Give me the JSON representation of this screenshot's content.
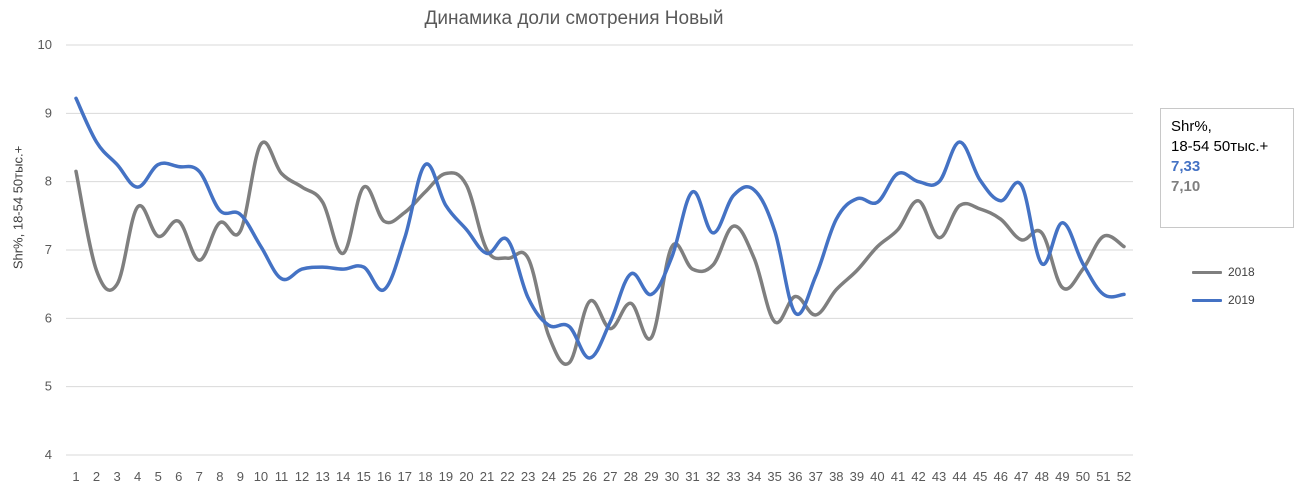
{
  "chart_data": {
    "type": "line",
    "title": "Динамика доли смотрения Новый",
    "ylabel": "Shr%, 18-54 50тыс.+",
    "xlabel": "",
    "ylim": [
      4,
      10
    ],
    "yticks": [
      4,
      5,
      6,
      7,
      8,
      9,
      10
    ],
    "grid": true,
    "legend": "right",
    "x": [
      1,
      2,
      3,
      4,
      5,
      6,
      7,
      8,
      9,
      10,
      11,
      12,
      13,
      14,
      15,
      16,
      17,
      18,
      19,
      20,
      21,
      22,
      23,
      24,
      25,
      26,
      27,
      28,
      29,
      30,
      31,
      32,
      33,
      34,
      35,
      36,
      37,
      38,
      39,
      40,
      41,
      42,
      43,
      44,
      45,
      46,
      47,
      48,
      49,
      50,
      51,
      52
    ],
    "series": [
      {
        "name": "2018",
        "color": "#7f7f7f",
        "values": [
          8.15,
          6.7,
          6.5,
          7.63,
          7.2,
          7.42,
          6.85,
          7.4,
          7.28,
          8.55,
          8.12,
          7.92,
          7.7,
          6.95,
          7.92,
          7.42,
          7.55,
          7.85,
          8.12,
          7.95,
          7.0,
          6.88,
          6.88,
          5.75,
          5.35,
          6.25,
          5.85,
          6.22,
          5.72,
          7.05,
          6.72,
          6.78,
          7.35,
          6.88,
          5.95,
          6.32,
          6.05,
          6.42,
          6.7,
          7.05,
          7.3,
          7.72,
          7.18,
          7.65,
          7.6,
          7.45,
          7.15,
          7.25,
          6.45,
          6.72,
          7.2,
          7.05
        ]
      },
      {
        "name": "2019",
        "color": "#4472C4",
        "values": [
          9.22,
          8.58,
          8.25,
          7.92,
          8.25,
          8.22,
          8.15,
          7.58,
          7.52,
          7.05,
          6.58,
          6.72,
          6.75,
          6.72,
          6.75,
          6.42,
          7.18,
          8.25,
          7.65,
          7.3,
          6.95,
          7.15,
          6.3,
          5.9,
          5.88,
          5.42,
          5.95,
          6.65,
          6.35,
          6.9,
          7.85,
          7.25,
          7.8,
          7.88,
          7.28,
          6.08,
          6.62,
          7.45,
          7.75,
          7.7,
          8.12,
          8.0,
          8.0,
          8.58,
          8.02,
          7.72,
          7.95,
          6.8,
          7.4,
          6.8,
          6.35,
          6.35
        ]
      }
    ]
  },
  "infobox": {
    "line1": "Shr%,",
    "line2": "18-54 50тыс.+",
    "value_2019": "7,33",
    "value_2018": "7,10"
  },
  "colors": {
    "s2018": "#7f7f7f",
    "s2019": "#4472C4",
    "grid": "#d9d9d9"
  }
}
